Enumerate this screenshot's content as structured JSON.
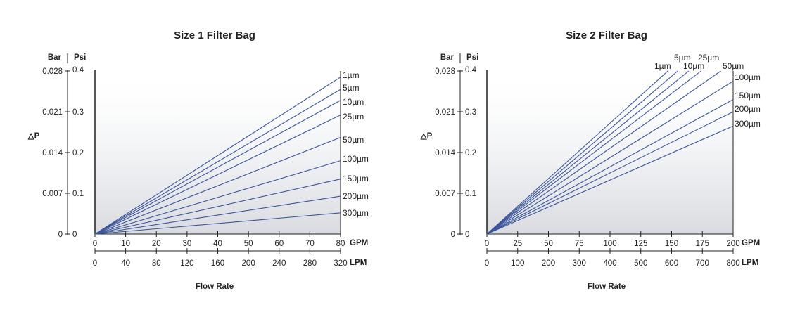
{
  "chart_data": [
    {
      "type": "line",
      "title": "Size 1 Filter Bag",
      "ylabel": "△P",
      "xlabel": "Flow Rate",
      "left_unit": "Bar",
      "right_unit": "Psi",
      "bar_ticks": [
        "0",
        "0.007",
        "0.014",
        "0.021",
        "0.028"
      ],
      "psi_ticks": [
        "0",
        "0.1",
        "0.2",
        "0.3",
        "0.4"
      ],
      "ylim": [
        0,
        0.4
      ],
      "x_unit": "GPM",
      "x_ticks": [
        "0",
        "10",
        "20",
        "30",
        "40",
        "50",
        "60",
        "70",
        "80"
      ],
      "xlim": [
        0,
        80
      ],
      "x2_unit": "LPM",
      "x2_ticks": [
        "0",
        "40",
        "80",
        "120",
        "160",
        "200",
        "240",
        "280",
        "320"
      ],
      "grid": false,
      "series": [
        {
          "name": "1µm",
          "x": [
            0,
            80
          ],
          "y": [
            0,
            0.385
          ]
        },
        {
          "name": "5µm",
          "x": [
            0,
            80
          ],
          "y": [
            0,
            0.355
          ]
        },
        {
          "name": "10µm",
          "x": [
            0,
            80
          ],
          "y": [
            0,
            0.328
          ]
        },
        {
          "name": "25µm",
          "x": [
            0,
            80
          ],
          "y": [
            0,
            0.292
          ]
        },
        {
          "name": "50µm",
          "x": [
            0,
            80
          ],
          "y": [
            0,
            0.237
          ]
        },
        {
          "name": "100µm",
          "x": [
            0,
            80
          ],
          "y": [
            0,
            0.18
          ]
        },
        {
          "name": "150µm",
          "x": [
            0,
            80
          ],
          "y": [
            0,
            0.135
          ]
        },
        {
          "name": "200µm",
          "x": [
            0,
            80
          ],
          "y": [
            0,
            0.093
          ]
        },
        {
          "name": "300µm",
          "x": [
            0,
            80
          ],
          "y": [
            0,
            0.052
          ]
        }
      ]
    },
    {
      "type": "line",
      "title": "Size 2 Filter Bag",
      "ylabel": "△P",
      "xlabel": "Flow Rate",
      "left_unit": "Bar",
      "right_unit": "Psi",
      "bar_ticks": [
        "0",
        "0.007",
        "0.014",
        "0.021",
        "0.028"
      ],
      "psi_ticks": [
        "0",
        "0.1",
        "0.2",
        "0.3",
        "0.4"
      ],
      "ylim": [
        0,
        0.4
      ],
      "x_unit": "GPM",
      "x_ticks": [
        "0",
        "25",
        "50",
        "75",
        "100",
        "125",
        "150",
        "175",
        "200"
      ],
      "xlim": [
        0,
        200
      ],
      "x2_unit": "LPM",
      "x2_ticks": [
        "0",
        "100",
        "200",
        "300",
        "400",
        "500",
        "600",
        "700",
        "800"
      ],
      "grid": false,
      "series": [
        {
          "name": "1µm",
          "x": [
            0,
            147
          ],
          "y": [
            0,
            0.4
          ]
        },
        {
          "name": "5µm",
          "x": [
            0,
            155
          ],
          "y": [
            0,
            0.4
          ]
        },
        {
          "name": "10µm",
          "x": [
            0,
            164
          ],
          "y": [
            0,
            0.4
          ]
        },
        {
          "name": "25µm",
          "x": [
            0,
            174
          ],
          "y": [
            0,
            0.4
          ]
        },
        {
          "name": "50µm",
          "x": [
            0,
            190
          ],
          "y": [
            0,
            0.4
          ]
        },
        {
          "name": "100µm",
          "x": [
            0,
            200
          ],
          "y": [
            0,
            0.375
          ]
        },
        {
          "name": "150µm",
          "x": [
            0,
            200
          ],
          "y": [
            0,
            0.33
          ]
        },
        {
          "name": "200µm",
          "x": [
            0,
            200
          ],
          "y": [
            0,
            0.3
          ]
        },
        {
          "name": "300µm",
          "x": [
            0,
            200
          ],
          "y": [
            0,
            0.265
          ]
        }
      ]
    }
  ]
}
